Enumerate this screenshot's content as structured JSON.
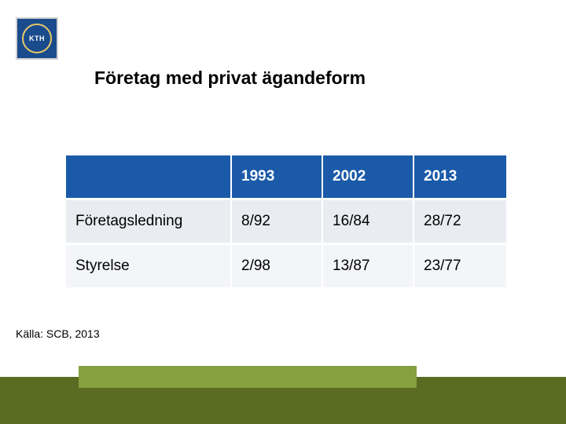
{
  "logo": {
    "text": "KTH"
  },
  "title": "Företag med privat ägandeform",
  "table": {
    "columns": [
      "",
      "1993",
      "2002",
      "2013"
    ],
    "rows": [
      [
        "Företagsledning",
        "8/92",
        "16/84",
        "28/72"
      ],
      [
        "Styrelse",
        "2/98",
        "13/87",
        "23/77"
      ]
    ],
    "header_bg": "#1a5aa8",
    "header_fg": "#ffffff",
    "row_bg_odd": "#e9edf2",
    "row_bg_even": "#f3f5f8",
    "cell_fontsize": 19
  },
  "source": "Källa: SCB, 2013",
  "footer": {
    "dark_color": "#5a6b22",
    "light_color": "#86a040"
  }
}
